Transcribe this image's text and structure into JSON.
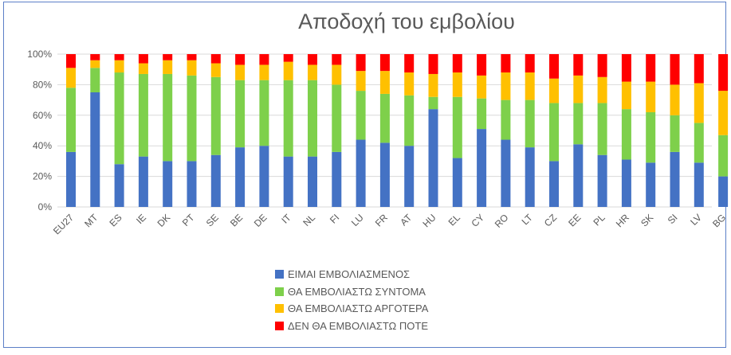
{
  "chart_data": {
    "type": "bar",
    "stacked": true,
    "percent": true,
    "title": "Αποδοχή του εμβολίου",
    "xlabel": "",
    "ylabel": "",
    "ylim": [
      0,
      100
    ],
    "yticks": [
      "0%",
      "20%",
      "40%",
      "60%",
      "80%",
      "100%"
    ],
    "grid": true,
    "legend_position": "bottom",
    "categories": [
      "EU27",
      "MT",
      "ES",
      "IE",
      "DK",
      "PT",
      "SE",
      "BE",
      "DE",
      "IT",
      "NL",
      "FI",
      "LU",
      "FR",
      "AT",
      "HU",
      "EL",
      "CY",
      "RO",
      "LT",
      "CZ",
      "EE",
      "PL",
      "HR",
      "SK",
      "SI",
      "LV",
      "BG"
    ],
    "series": [
      {
        "name": "ΕΙΜΑΙ ΕΜΒΟΛΙΑΣΜΕΝΟΣ",
        "color": "#4472c4",
        "values": [
          36,
          75,
          28,
          33,
          30,
          30,
          34,
          39,
          40,
          33,
          33,
          36,
          44,
          42,
          40,
          64,
          32,
          51,
          44,
          39,
          30,
          41,
          34,
          31,
          29,
          36,
          29,
          20
        ]
      },
      {
        "name": "ΘΑ ΕΜΒΟΛΙΑΣΤΩ ΣΥΝΤΟΜΑ",
        "color": "#7ed04b",
        "values": [
          42,
          16,
          60,
          54,
          57,
          56,
          51,
          44,
          43,
          50,
          50,
          44,
          32,
          32,
          33,
          8,
          40,
          20,
          26,
          31,
          38,
          27,
          34,
          33,
          33,
          24,
          26,
          27
        ]
      },
      {
        "name": "ΘΑ ΕΜΒΟΛΙΑΣΤΩ ΑΡΓΟΤΕΡΑ",
        "color": "#ffc000",
        "values": [
          13,
          5,
          8,
          7,
          9,
          10,
          9,
          10,
          10,
          12,
          10,
          13,
          13,
          15,
          15,
          15,
          16,
          15,
          18,
          18,
          16,
          18,
          17,
          18,
          20,
          20,
          26,
          29
        ]
      },
      {
        "name": "ΔΕΝ ΘΑ ΕΜΒΟΛΙΑΣΤΩ ΠΟΤΕ",
        "color": "#ff0000",
        "values": [
          9,
          4,
          4,
          6,
          4,
          4,
          6,
          7,
          7,
          5,
          7,
          7,
          11,
          11,
          12,
          13,
          12,
          14,
          12,
          12,
          16,
          14,
          15,
          18,
          18,
          20,
          19,
          24
        ]
      }
    ]
  }
}
